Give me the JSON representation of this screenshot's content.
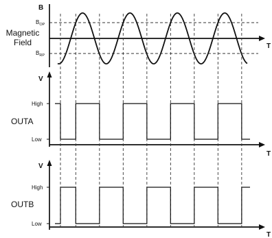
{
  "panels": {
    "magnetic": {
      "y_axis_label": "B",
      "x_axis_label": "T",
      "name_line1": "Magnetic",
      "name_line2": "Field",
      "bop_main": "B",
      "bop_sub": "OP",
      "brp_main": "B",
      "brp_sub": "RP",
      "cycles": 4
    },
    "outa": {
      "y_axis_label": "V",
      "x_axis_label": "T",
      "name": "OUTA",
      "high_label": "High",
      "low_label": "Low"
    },
    "outb": {
      "y_axis_label": "V",
      "x_axis_label": "T",
      "name": "OUTB",
      "high_label": "High",
      "low_label": "Low"
    }
  }
}
